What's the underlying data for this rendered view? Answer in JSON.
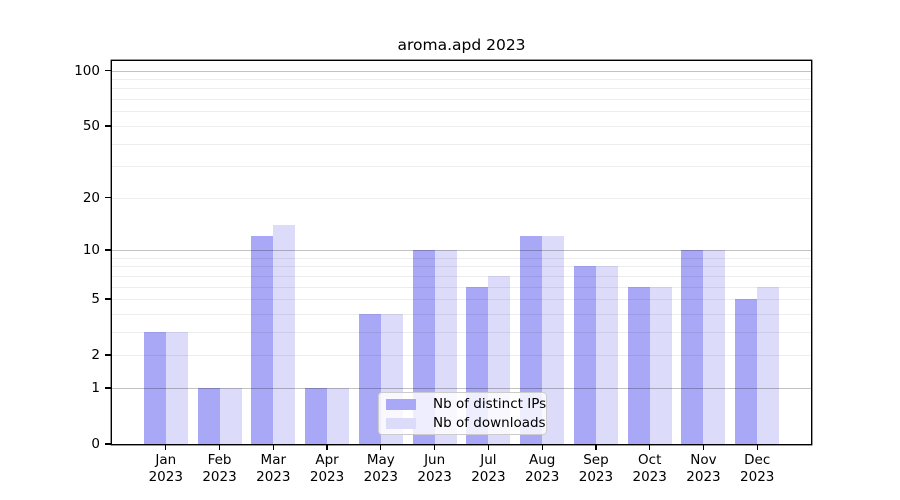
{
  "title": "aroma.apd 2023",
  "colors": {
    "distinct_ips_bar": "#a8a8f7",
    "downloads_bar": "#dcdcfa",
    "axis": "#000000",
    "major_grid": "#bdbdbd",
    "minor_grid": "#ececec",
    "legend_border": "#cccccc"
  },
  "legend": {
    "items": [
      {
        "label": "Nb of distinct IPs",
        "color": "#a8a8f7"
      },
      {
        "label": "Nb of downloads",
        "color": "#dcdcfa"
      }
    ]
  },
  "y_axis": {
    "tick_values": [
      0,
      1,
      2,
      5,
      10,
      20,
      50,
      100
    ],
    "tick_labels": [
      "0",
      "1",
      "2",
      "5",
      "10",
      "20",
      "50",
      "100"
    ],
    "minor_grid_values": [
      2,
      3,
      4,
      5,
      6,
      7,
      8,
      9,
      20,
      30,
      40,
      50,
      60,
      70,
      80,
      90
    ],
    "major_grid_values": [
      1,
      10,
      100
    ]
  },
  "chart_data": {
    "type": "bar",
    "title": "aroma.apd 2023",
    "categories": [
      "Jan 2023",
      "Feb 2023",
      "Mar 2023",
      "Apr 2023",
      "May 2023",
      "Jun 2023",
      "Jul 2023",
      "Aug 2023",
      "Sep 2023",
      "Oct 2023",
      "Nov 2023",
      "Dec 2023"
    ],
    "series": [
      {
        "name": "Nb of distinct IPs",
        "color": "#a8a8f7",
        "values": [
          3,
          1,
          12,
          1,
          4,
          10,
          6,
          12,
          8,
          6,
          10,
          5
        ]
      },
      {
        "name": "Nb of downloads",
        "color": "#dcdcfa",
        "values": [
          3,
          1,
          14,
          1,
          4,
          10,
          7,
          12,
          8,
          6,
          10,
          6
        ]
      }
    ],
    "xlabel": "",
    "ylabel": "",
    "yscale": "log1p",
    "yticks": [
      0,
      1,
      2,
      5,
      10,
      20,
      50,
      100
    ],
    "ylim": [
      0,
      113
    ],
    "grid": true,
    "legend_position": "lower-center"
  }
}
